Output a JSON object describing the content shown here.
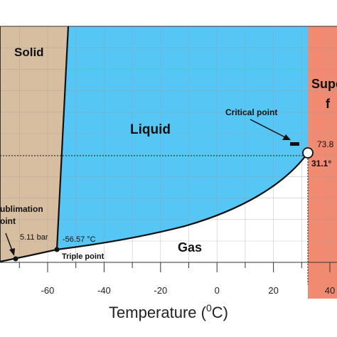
{
  "colors": {
    "solid": "#d8bea0",
    "liquid": "#56c6f5",
    "supercritical": "#f08b72",
    "gas": "#ffffff",
    "grid": "#9a9a9a",
    "curve": "#111111"
  },
  "regions": {
    "solid": "Solid",
    "liquid": "Liquid",
    "supercritical_line1": "Supe",
    "supercritical_line2": "f",
    "gas": "Gas"
  },
  "annotations": {
    "critical_point": "Critical point",
    "critical_pressure": "73.8",
    "critical_temperature": "31.1°",
    "triple_point": "Triple point",
    "triple_temperature": "-56.57 °C",
    "sublimation_line1": "ublimation",
    "sublimation_line2": "oint",
    "sublimation_pressure": "5.11 bar"
  },
  "x_axis": {
    "ticks": [
      "-60",
      "-40",
      "-20",
      "0",
      "20",
      "40"
    ],
    "label_prefix": "Temperature (",
    "label_sup": "0",
    "label_suffix": "C)"
  },
  "chart_data": {
    "type": "line",
    "xlabel": "Temperature (°C)",
    "xlim": [
      -75,
      38
    ],
    "x_ticks": [
      -60,
      -40,
      -20,
      0,
      20,
      40
    ],
    "grid": true,
    "key_points": [
      {
        "name": "Triple point",
        "temperature_c": -56.57
      },
      {
        "name": "Critical point",
        "temperature_c": 31.1,
        "pressure": 73.8
      },
      {
        "name": "Sublimation point",
        "pressure_bar": 5.11
      }
    ]
  }
}
